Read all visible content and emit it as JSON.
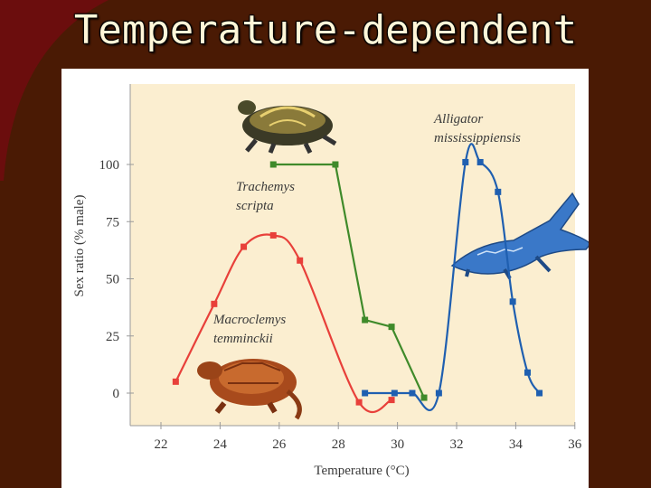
{
  "slide": {
    "title": "Temperature-dependent"
  },
  "colors": {
    "background": "#4a1a04",
    "accent_bar": "#6b0d0d",
    "plot_background": "#fbeed0",
    "macroclemys": "#e8403a",
    "trachemys": "#3f8a2a",
    "alligator": "#1f5fb0"
  },
  "chart_data": {
    "type": "line",
    "xlabel": "Temperature (°C)",
    "ylabel": "Sex ratio (% male)",
    "xlim": [
      21,
      36
    ],
    "ylim": [
      -14,
      120
    ],
    "x_ticks": [
      22,
      24,
      26,
      28,
      30,
      32,
      34,
      36
    ],
    "y_ticks": [
      0,
      25,
      50,
      75,
      100
    ],
    "grid": false,
    "series": [
      {
        "name": "Trachemys scripta",
        "label_lines": [
          "Trachemys",
          "scripta"
        ],
        "color": "#3f8a2a",
        "x": [
          25.8,
          27.9,
          28.9,
          29.8,
          30.9
        ],
        "y": [
          100,
          100,
          32,
          29,
          -2
        ]
      },
      {
        "name": "Macroclemys temminckii",
        "label_lines": [
          "Macroclemys",
          "temminckii"
        ],
        "color": "#e8403a",
        "x": [
          22.5,
          23.8,
          24.8,
          25.8,
          26.7,
          28.7,
          29.8
        ],
        "y": [
          5,
          39,
          64,
          69,
          58,
          -4,
          -3
        ]
      },
      {
        "name": "Alligator mississippiensis",
        "label_lines": [
          "Alligator",
          "mississippiensis"
        ],
        "color": "#1f5fb0",
        "x": [
          28.9,
          29.9,
          30.5,
          31.4,
          32.3,
          32.8,
          33.4,
          33.9,
          34.4,
          34.8
        ],
        "y": [
          0,
          0,
          0,
          0,
          101,
          101,
          88,
          40,
          9,
          0
        ]
      }
    ]
  },
  "illustrations": {
    "turtle_top": "turtle-illustration",
    "snapping_turtle": "snapping-turtle-illustration",
    "alligator": "alligator-illustration"
  }
}
